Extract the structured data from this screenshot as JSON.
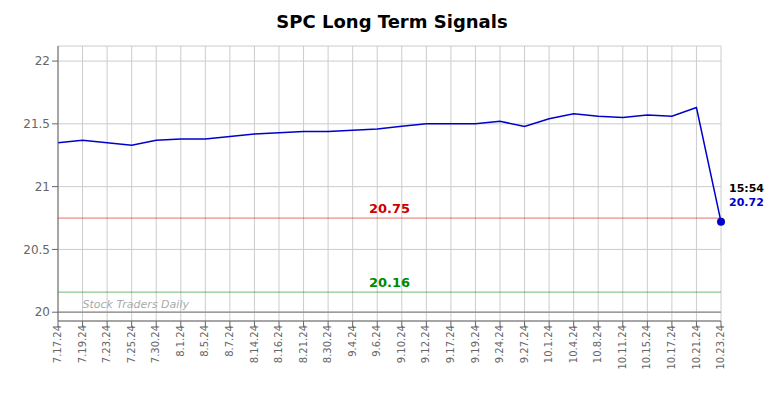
{
  "chart_data": {
    "type": "line",
    "title": "SPC Long Term Signals",
    "categories": [
      "7.17.24",
      "7.19.24",
      "7.23.24",
      "7.25.24",
      "7.30.24",
      "8.1.24",
      "8.5.24",
      "8.7.24",
      "8.14.24",
      "8.16.24",
      "8.21.24",
      "8.30.24",
      "9.4.24",
      "9.6.24",
      "9.10.24",
      "9.12.24",
      "9.17.24",
      "9.19.24",
      "9.24.24",
      "9.27.24",
      "10.1.24",
      "10.4.24",
      "10.8.24",
      "10.11.24",
      "10.15.24",
      "10.17.24",
      "10.21.24",
      "10.23.24"
    ],
    "values": [
      21.35,
      21.37,
      21.35,
      21.33,
      21.37,
      21.38,
      21.38,
      21.4,
      21.42,
      21.43,
      21.44,
      21.44,
      21.45,
      21.46,
      21.48,
      21.5,
      21.5,
      21.5,
      21.52,
      21.48,
      21.54,
      21.58,
      21.56,
      21.55,
      21.57,
      21.56,
      21.63,
      20.72
    ],
    "color": "#0000cc",
    "ylim": [
      19.93,
      22.12
    ],
    "yticks": [
      20,
      20.5,
      21,
      21.5,
      22
    ],
    "grid": true,
    "reference_lines": [
      {
        "value": 20.75,
        "label": "20.75",
        "color": "#cc0000"
      },
      {
        "value": 20.16,
        "label": "20.16",
        "color": "#008800"
      },
      {
        "value": 20,
        "color": "#888888"
      }
    ],
    "annotations": [
      {
        "text": "15:54",
        "category": "10.23.24",
        "value": 20.72,
        "color": "#000000"
      },
      {
        "text": "20.72",
        "category": "10.23.24",
        "value": 20.72,
        "color": "#0000cc"
      },
      {
        "text": "Stock Traders Daily",
        "category": "7.19.24",
        "value": 20,
        "color": "#aaaaaa"
      }
    ]
  }
}
